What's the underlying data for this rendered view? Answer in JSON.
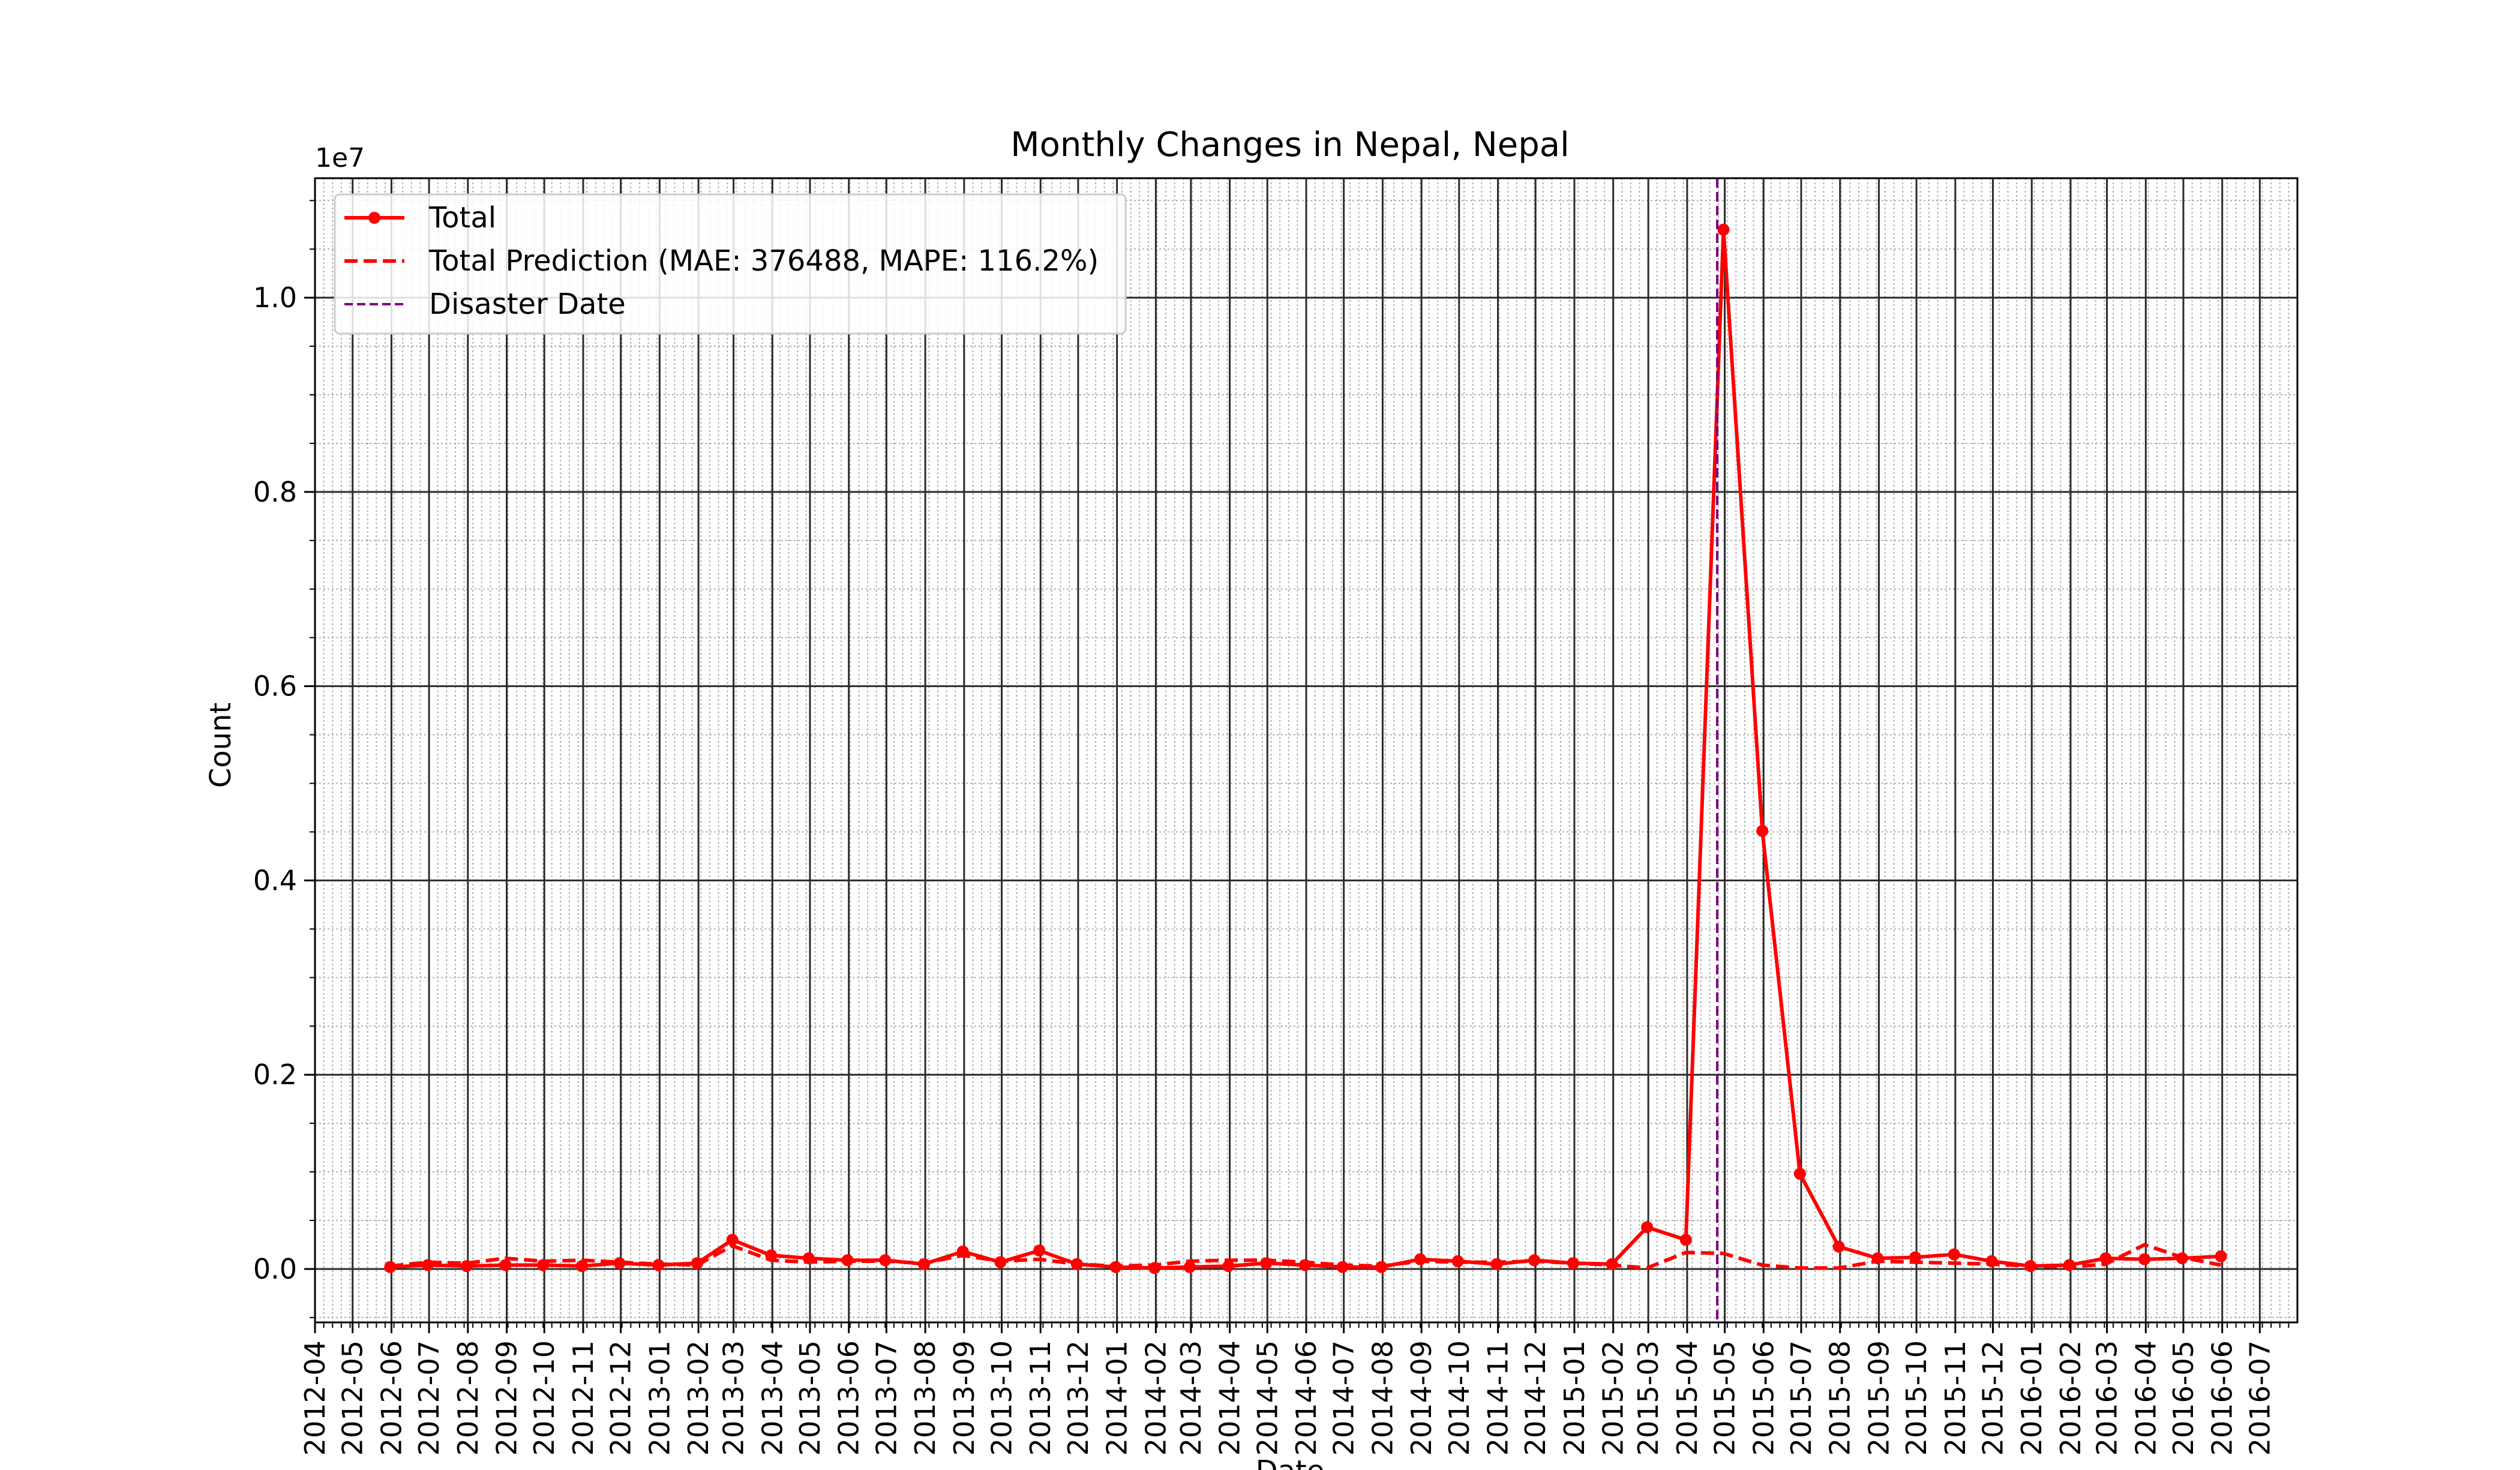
{
  "chart_data": {
    "type": "line",
    "title": "Monthly Changes in Nepal, Nepal",
    "xlabel": "Date",
    "ylabel": "Count",
    "y_offset_label": "1e7",
    "ylim": [
      -0.055,
      1.123
    ],
    "y_ticks": [
      0.0,
      0.2,
      0.4,
      0.6,
      0.8,
      1.0
    ],
    "y_tick_labels": [
      "0.0",
      "0.2",
      "0.4",
      "0.6",
      "0.8",
      "1.0"
    ],
    "y_minor_step": 0.05,
    "x_range": [
      "2012-04-01",
      "2016-07-31"
    ],
    "x_tick_labels": [
      "2012-04",
      "2012-05",
      "2012-06",
      "2012-07",
      "2012-08",
      "2012-09",
      "2012-10",
      "2012-11",
      "2012-12",
      "2013-01",
      "2013-02",
      "2013-03",
      "2013-04",
      "2013-05",
      "2013-06",
      "2013-07",
      "2013-08",
      "2013-09",
      "2013-10",
      "2013-11",
      "2013-12",
      "2014-01",
      "2014-02",
      "2014-03",
      "2014-04",
      "2014-05",
      "2014-06",
      "2014-07",
      "2014-08",
      "2014-09",
      "2014-10",
      "2014-11",
      "2014-12",
      "2015-01",
      "2015-02",
      "2015-03",
      "2015-04",
      "2015-05",
      "2015-06",
      "2015-07",
      "2015-08",
      "2015-09",
      "2015-10",
      "2015-11",
      "2015-12",
      "2016-01",
      "2016-02",
      "2016-03",
      "2016-04",
      "2016-05",
      "2016-06",
      "2016-07"
    ],
    "grid": true,
    "legend_position": "top-left",
    "dates": [
      "2012-05-31",
      "2012-06-30",
      "2012-07-31",
      "2012-08-31",
      "2012-09-30",
      "2012-10-31",
      "2012-11-30",
      "2012-12-31",
      "2013-01-31",
      "2013-02-28",
      "2013-03-31",
      "2013-04-30",
      "2013-05-31",
      "2013-06-30",
      "2013-07-31",
      "2013-08-31",
      "2013-09-30",
      "2013-10-31",
      "2013-11-30",
      "2013-12-31",
      "2014-01-31",
      "2014-02-28",
      "2014-03-31",
      "2014-04-30",
      "2014-05-31",
      "2014-06-30",
      "2014-07-31",
      "2014-08-31",
      "2014-09-30",
      "2014-10-31",
      "2014-11-30",
      "2014-12-31",
      "2015-01-31",
      "2015-02-28",
      "2015-03-31",
      "2015-04-30",
      "2015-05-31",
      "2015-06-30",
      "2015-07-31",
      "2015-08-31",
      "2015-09-30",
      "2015-10-31",
      "2015-11-30",
      "2015-12-31",
      "2016-01-31",
      "2016-02-29",
      "2016-03-31",
      "2016-04-30",
      "2016-05-31"
    ],
    "series": [
      {
        "name": "Total",
        "color": "#ff0000",
        "style": "solid-with-markers",
        "values": [
          0.002,
          0.004,
          0.003,
          0.004,
          0.004,
          0.003,
          0.006,
          0.004,
          0.006,
          0.03,
          0.014,
          0.011,
          0.009,
          0.009,
          0.005,
          0.018,
          0.007,
          0.019,
          0.005,
          0.002,
          0.001,
          0.002,
          0.003,
          0.006,
          0.004,
          0.002,
          0.002,
          0.01,
          0.008,
          0.005,
          0.009,
          0.006,
          0.005,
          0.043,
          0.03,
          1.07,
          0.451,
          0.098,
          0.023,
          0.011,
          0.012,
          0.015,
          0.008,
          0.003,
          0.004,
          0.011,
          0.01,
          0.011,
          0.013
        ]
      },
      {
        "name": "Total Prediction (MAE: 376488, MAPE: 116.2%)",
        "color": "#ff0000",
        "style": "dashed",
        "values": [
          0.003,
          0.007,
          0.006,
          0.011,
          0.008,
          0.009,
          0.007,
          0.005,
          0.004,
          0.024,
          0.009,
          0.007,
          0.008,
          0.008,
          0.006,
          0.014,
          0.008,
          0.01,
          0.005,
          0.003,
          0.004,
          0.008,
          0.009,
          0.009,
          0.007,
          0.004,
          0.003,
          0.008,
          0.007,
          0.007,
          0.008,
          0.006,
          0.004,
          0.001,
          0.017,
          0.016,
          0.004,
          0.001,
          0.001,
          0.008,
          0.007,
          0.006,
          0.005,
          0.003,
          0.002,
          0.005,
          0.025,
          0.012,
          0.004
        ]
      }
    ],
    "annotations": [
      {
        "name": "Disaster Date",
        "date": "2015-04-25",
        "color": "#800080",
        "style": "dashed vertical line"
      }
    ]
  }
}
